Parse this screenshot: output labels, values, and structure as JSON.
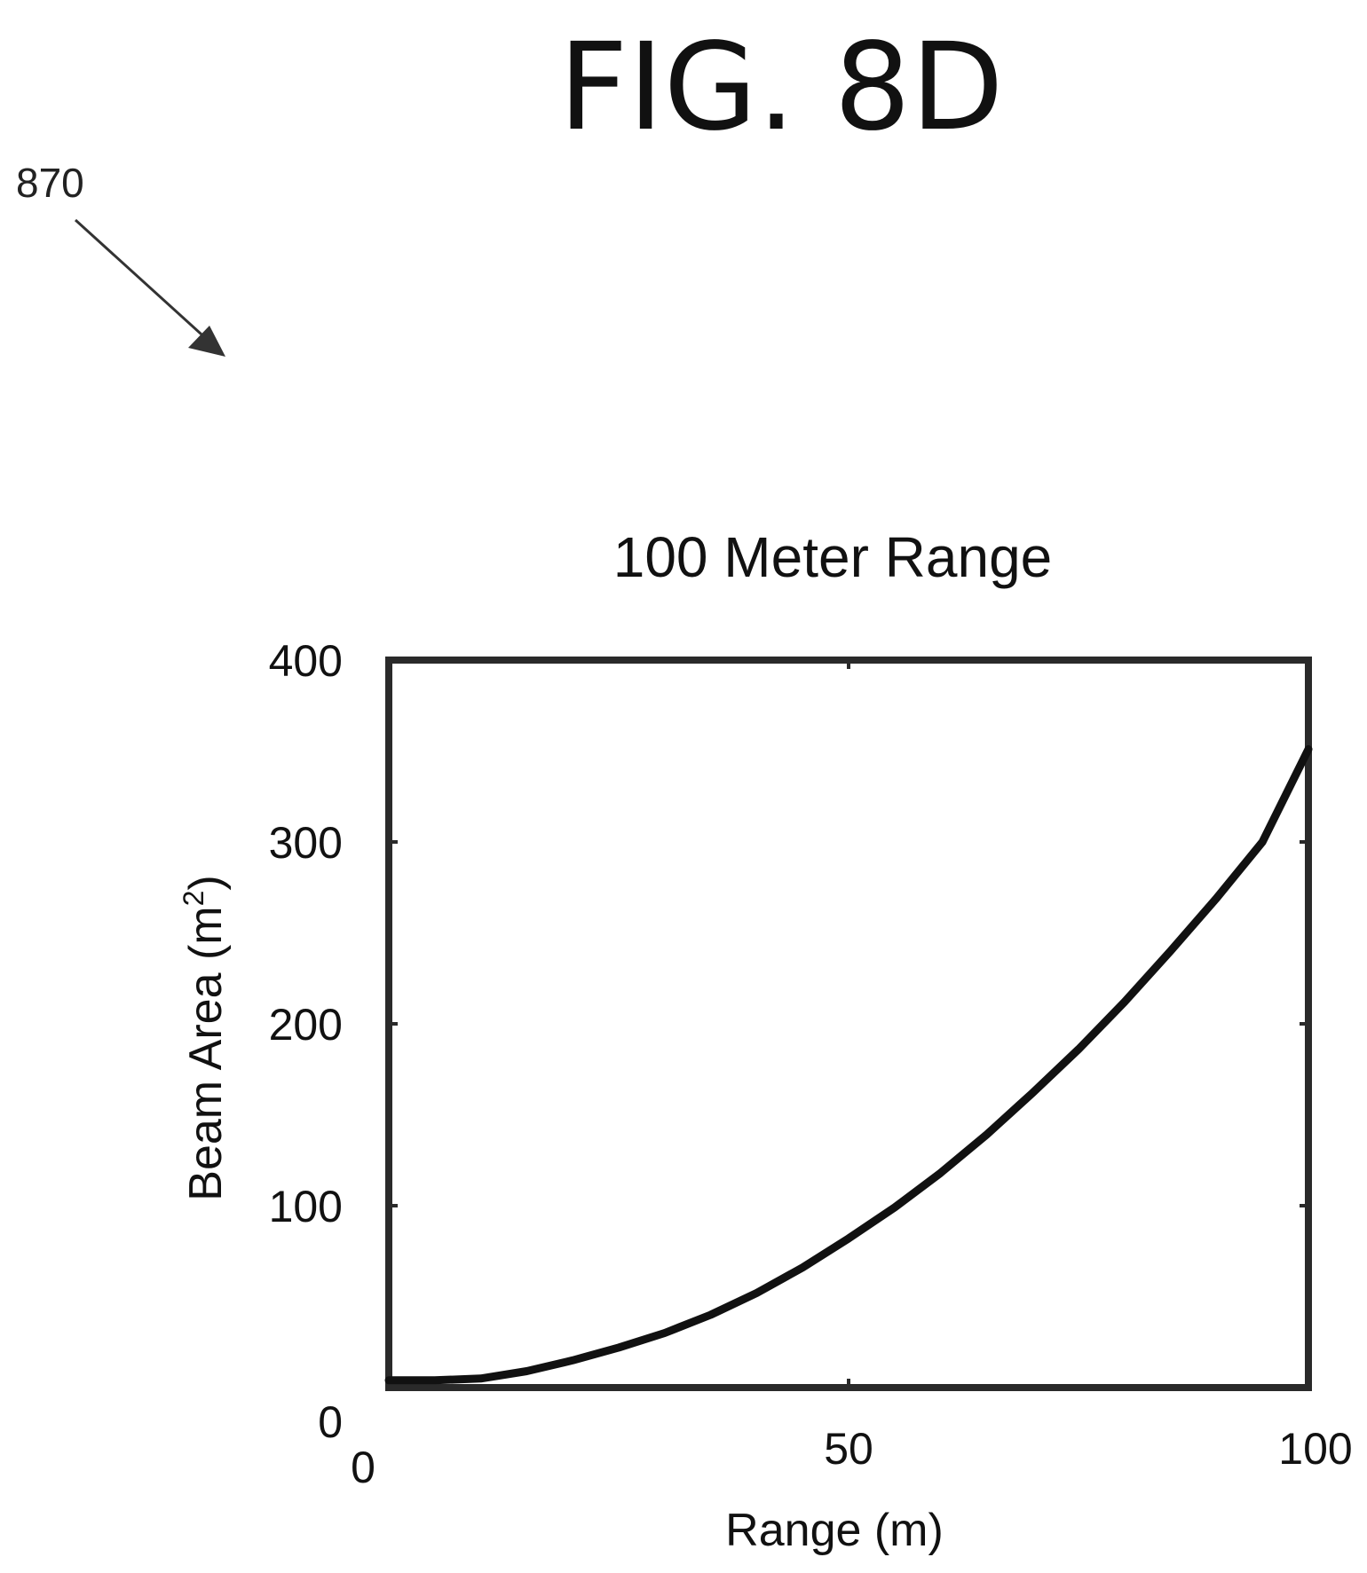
{
  "figure": {
    "label": "FIG. 8D",
    "reference_numeral": "870"
  },
  "chart_data": {
    "type": "line",
    "title": "100 Meter Range",
    "xlabel": "Range (m)",
    "ylabel_main": "Beam Area (m",
    "ylabel_sup": "2",
    "ylabel_close": ")",
    "xlim": [
      0,
      100
    ],
    "ylim": [
      0,
      400
    ],
    "x_ticks": [
      0,
      50,
      100
    ],
    "y_ticks": [
      0,
      100,
      200,
      300,
      400
    ],
    "grid": false,
    "series": [
      {
        "x": [
          0,
          5,
          10,
          15,
          20,
          25,
          30,
          35,
          40,
          45,
          50,
          55,
          60,
          65,
          70,
          75,
          80,
          85,
          90,
          95,
          100
        ],
        "values": [
          4,
          4,
          5,
          9,
          15,
          22,
          30,
          40,
          52,
          66,
          82,
          99,
          118,
          139,
          162,
          186,
          212,
          240,
          269,
          300,
          351
        ]
      }
    ],
    "colors": {
      "line": "#111111",
      "axes": "#2a2a2a"
    }
  }
}
